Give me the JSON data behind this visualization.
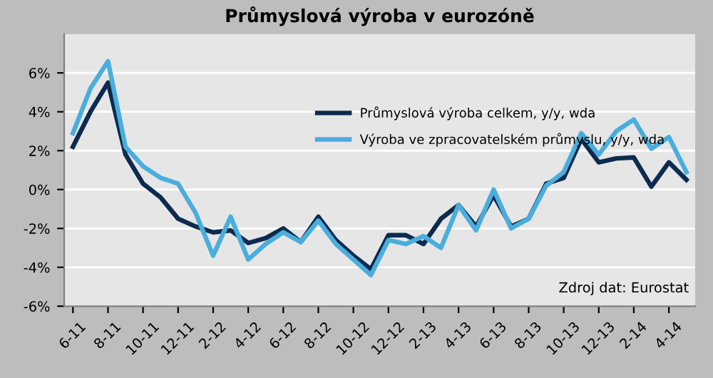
{
  "chart_data": {
    "type": "line",
    "title": "Průmyslová výroba v eurozóně",
    "categories": [
      "6-11",
      null,
      "8-11",
      null,
      "10-11",
      null,
      "12-11",
      null,
      "2-12",
      null,
      "4-12",
      null,
      "6-12",
      null,
      "8-12",
      null,
      "10-12",
      null,
      "12-12",
      null,
      "2-13",
      null,
      "4-13",
      null,
      "6-13",
      null,
      "8-13",
      null,
      "10-13",
      null,
      "12-13",
      null,
      "2-14",
      null,
      "4-14",
      null
    ],
    "series": [
      {
        "name": "Průmyslová výroba celkem, y/y, wda",
        "color": "#0d2a4f",
        "values": [
          2.2,
          4.0,
          5.5,
          1.8,
          0.3,
          -0.4,
          -1.5,
          -1.9,
          -2.2,
          -2.1,
          -2.75,
          -2.5,
          -2.0,
          -2.7,
          -1.4,
          -2.6,
          -3.4,
          -4.1,
          -2.35,
          -2.35,
          -2.8,
          -1.5,
          -0.8,
          -1.9,
          -0.3,
          -1.9,
          -1.5,
          0.3,
          0.6,
          2.6,
          1.4,
          1.6,
          1.65,
          0.15,
          1.4,
          0.5
        ]
      },
      {
        "name": "Výroba ve zpracovatelském průmyslu, y/y, wda",
        "color": "#4aaedc",
        "values": [
          2.9,
          5.2,
          6.6,
          2.2,
          1.2,
          0.6,
          0.3,
          -1.2,
          -3.4,
          -1.4,
          -3.6,
          -2.8,
          -2.2,
          -2.7,
          -1.6,
          -2.8,
          -3.6,
          -4.4,
          -2.6,
          -2.8,
          -2.4,
          -3.0,
          -0.8,
          -2.1,
          0.0,
          -2.0,
          -1.5,
          0.2,
          0.9,
          2.9,
          1.8,
          3.0,
          3.6,
          2.1,
          2.7,
          0.9
        ]
      }
    ],
    "ylim": [
      -6,
      8
    ],
    "yticks": [
      {
        "value": -6,
        "label": "-6%"
      },
      {
        "value": -4,
        "label": "-4%"
      },
      {
        "value": -2,
        "label": "-2%"
      },
      {
        "value": 0,
        "label": "0%"
      },
      {
        "value": 2,
        "label": "2%"
      },
      {
        "value": 4,
        "label": "4%"
      },
      {
        "value": 6,
        "label": "6%"
      }
    ],
    "grid": "y",
    "legend": "right",
    "marker": "none",
    "line_style": "solid",
    "annotations": [
      "Zdroj dat: Eurostat"
    ]
  }
}
